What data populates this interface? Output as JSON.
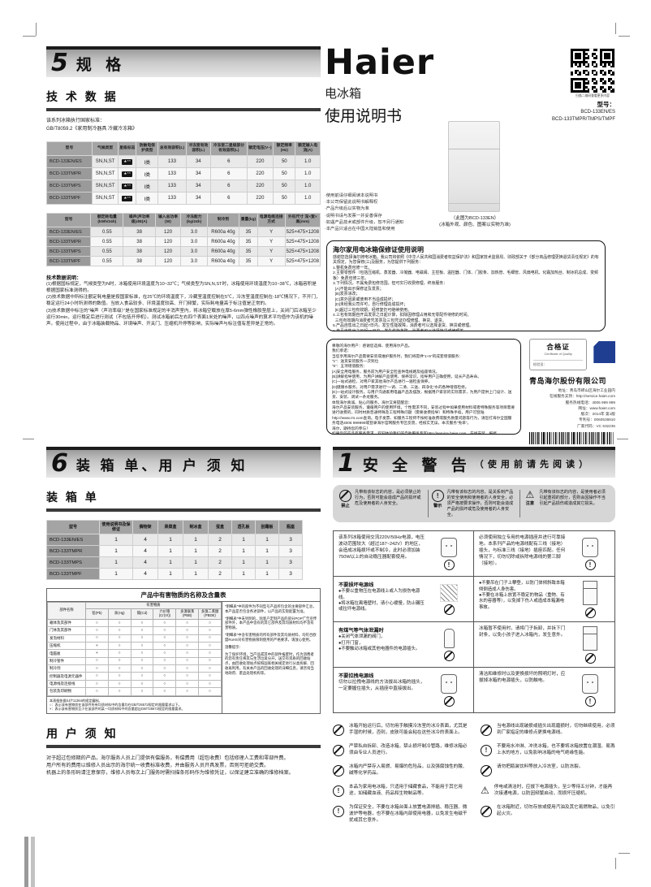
{
  "cover": {
    "brand": "Haier",
    "product": "电冰箱",
    "doc_title": "使用说明书",
    "qr_caption": "扫描二维码查看更多内容",
    "model_label": "型号：",
    "models": [
      "BCD-133EN/ES",
      "BCD-133TMPR/TMPS/TMPF"
    ],
    "notes": [
      "·使用前请仔细阅读本说明书",
      "·本公司保留此说明书解释权",
      "·产品升级后以实物为准",
      "·说明书请与发票一并妥善保存",
      "·如遇产品技术或部件升级，恕不另行通知",
      "·本产品只适合在中国大陆销售和使用"
    ],
    "fridge_caption1": "（此图为BCD-133EN）",
    "fridge_caption2": "(冰箱外观、颜色、图案以实物为准)"
  },
  "warranty": {
    "title": "海尔家用电冰箱保修证使用说明",
    "lines": [
      "感谢您选择海尔牌电冰箱。我公司将依照《中华人民共和国消费者权益保护法》和国家技术监督局、财政部关于《部分商品修理更换退货责任规定》的有关规定，为您保修(三)及服务，为您提供下列服务：",
      "1.整机免费包修一年。",
      "2.主要零部件（包括压缩机、蒸发器、冷凝器、电磁阀、主控板、温控器、门体、门胶条、加热管、毛细管、风扇电机、化霜加热丝、制冰机总成、变频板）免费包修三年。",
      "3.下列情况，不属免费包修范围，但可实行收费修理，终身服务：",
      "  [A]不能出示保修证及发票；",
      "  [B]发票涂改；",
      "  [C]意外因素或使用不当造成损坏；",
      "  [D]未经我公司许可，自行修理造成损坏；",
      "  [E]超过三包有效期，经修复仍可继续使用。",
      "4.三包有效期自开具发票之日起计算，扣除因修理占用和无零配件待修的时间。",
      "  三包有效期内消费者凭发票及三包凭证办理修理、换货、退货。",
      "5.产品自售出之日起7日内，发生性能故障，消费者可以选择退货、换货或修理。",
      "6.产品自售出之日起15日内，发生性能故障，消费者可以选择换货或修理等。",
      "7.“性能故障”，是指产品不符合安全、卫生要求，存在危及人身、财产安全的不合理危险；或者不具备产品应当具备的使用性能；或者不符合明示的质量状况。"
    ]
  },
  "service": {
    "lines": [
      "尊敬的海尔用户：感谢您选择、使用海尔产品。",
      "我们承诺：",
      "当您享用海尔产品需要安装或维护服务时，我们将提供“1+5”的成套增值服务：",
      "“1”：送货安装服务一次到位",
      "“5”：五项增值服务：",
      "[A]安全用电服务，服务前为用户安全检查供电线路及插座情况。",
      "[B]讲解指导使用，为用户讲解产品使用、保养常识，指导用户正确使用，延长产品寿命。",
      "[C]一站式通检，对用户家其他海尔产品进行一遍检查保养。",
      "[D]健康水服务，对用户需求进行“一调、二清、三送、四净化”水的各种增值检修。",
      "[E]一站式设计服务，与用户沟通家用电器产品及摆放，根据用户家装的实际需求，为用户提供上门设计、送货、安装、调试一条龙服务。",
      "体现海尔真诚、贴心的服务，海尔又将提醒您：",
      "海尔产品安装服务，遵循用户的使用环境，个性需求不同，安装过程中如果使用材料或者特殊服务等项目需要进行收费的，同时材质普通特殊及工程特殊问题（需要收费指导）和特殊手续，用户可登陆http://www.rrs.com查询。电子发票、如服务工程师不按标准收费或服务质量问题等行为，请您打海尔全国服务电话4006 999999或登录海尔官网服务专区反馈，经核实无误，本次服务“免单”。",
      "海尔，期待您的参与！",
      "如果您的产品有服务需求，欢迎体验我们的自助服务专区http://service.haier.com，在线安装、报修。"
    ]
  },
  "certificate": {
    "title": "合格证",
    "subtitle": "Certificate of Quality",
    "inspector": "检验员：",
    "company": "青岛海尔股份有限公司",
    "lines": [
      "地址：青岛市崂山区海尔工业园内",
      "在线服务支持：http://service.haier.com",
      "服务热线电话：4006 999 999",
      "网址：www.haier.com",
      "版次：2014年 第1版",
      "专利号：0060536910",
      "厂家代码：VC 532236"
    ]
  },
  "section5": {
    "number": "5",
    "title": "规 格",
    "subsection": "技 术 数 据",
    "standard_note": [
      "该系列冰箱执行国家标准：",
      "GB/T8059.2《家用制冷器具 冷藏冷冻箱》"
    ],
    "table1": {
      "headers": [
        "型号",
        "气候类型",
        "星级标志",
        "防触电保护类型",
        "总有效容积(L)",
        "冷冻室有效容积(L)",
        "冷冻室二星级部分有效容积(L)",
        "额定电压(V~)",
        "额定频率(Hz)",
        "额定输入电流(A)"
      ],
      "rows": [
        [
          "BCD-133EN/ES",
          "SN,N,ST",
          "badge:★**",
          "I类",
          "133",
          "34",
          "6",
          "220",
          "50",
          "1.0"
        ],
        [
          "BCD-133TMPR",
          "SN,N,ST",
          "badge:★**",
          "I类",
          "133",
          "34",
          "6",
          "220",
          "50",
          "1.0"
        ],
        [
          "BCD-133TMPS",
          "SN,N,ST",
          "badge:★**",
          "I类",
          "133",
          "34",
          "6",
          "220",
          "50",
          "1.0"
        ],
        [
          "BCD-133TMPF",
          "SN,N,ST",
          "badge:★**",
          "I类",
          "133",
          "34",
          "6",
          "220",
          "50",
          "1.0"
        ]
      ]
    },
    "table2": {
      "headers": [
        "型号",
        "额定耗电量(kWh/24h)",
        "噪声(声功率级)dB(A)",
        "输入总功率(W)",
        "冷冻能力(kg/24h)",
        "制冷剂",
        "重量(kg)",
        "电源电缆连接方式",
        "外形尺寸 深×宽×高(mm)"
      ],
      "rows": [
        [
          "BCD-133EN/ES",
          "0.55",
          "38",
          "120",
          "3.0",
          "R600a 40g",
          "35",
          "Y",
          "525×475×1208"
        ],
        [
          "BCD-133TMPR",
          "0.55",
          "38",
          "120",
          "3.0",
          "R600a 40g",
          "35",
          "Y",
          "525×475×1208"
        ],
        [
          "BCD-133TMPS",
          "0.55",
          "38",
          "120",
          "3.0",
          "R600a 40g",
          "35",
          "Y",
          "525×475×1208"
        ],
        [
          "BCD-133TMPF",
          "0.55",
          "38",
          "120",
          "3.0",
          "R600a 40g",
          "35",
          "Y",
          "525×475×1208"
        ]
      ]
    },
    "notes_title": "技术数据说明：",
    "notes": [
      "(1)根据国标规定，气候类型为N时，冰箱使用环境温度为10~32℃；气候类型为SN,N,ST时，冰箱使用环境温度为10~38℃，冰箱容积是根据国家标准测得的。",
      "(2)技术数据中所标注额定耗电量是按国家标准，在25℃的环境温度下，冷藏室温度控制在5℃，冷冻室温度控制在-18℃情况下，不开门，稳定运行24小时所测得的数值。当放入食品较多、环境温度较高、开门频繁，实际耗电量高于标注值是正常的。",
      "(3)技术数据中标注的“噪声（声功率级）”是在国家标准规定的半消声室内，将冰箱空载放在厚5-6mm弹性橡胶垫层上，关闭门后冰箱至少运行30min，运行稳定后进行测试（不包括开停机）。测试冰箱前后左右四个表面1米处的噪声，以四点噪声的算术平均值作为该机的噪声。使用过程中，由于冰箱装载物品、环境噪声、开关门、压缩机开停等影响，实际噪声与标注值有差异是正常的。"
    ]
  },
  "section6": {
    "number": "6",
    "title": "装 箱 单、用 户 须 知",
    "packing_title": "装 箱 单",
    "packing_table": {
      "headers": [
        "型号",
        "使用说明书及保修证",
        "搁物架",
        "果菜盒",
        "制冰盒",
        "蛋盒",
        "透孔板",
        "刮霜板",
        "瓶座"
      ],
      "rows": [
        [
          "BCD-133EN/ES",
          "1",
          "4",
          "1",
          "1",
          "2",
          "1",
          "1",
          "3"
        ],
        [
          "BCD-133TMPR",
          "1",
          "4",
          "1",
          "1",
          "2",
          "1",
          "1",
          "3"
        ],
        [
          "BCD-133TMPS",
          "1",
          "4",
          "1",
          "1",
          "2",
          "1",
          "1",
          "3"
        ],
        [
          "BCD-133TMPF",
          "1",
          "4",
          "1",
          "1",
          "2",
          "1",
          "1",
          "3"
        ]
      ]
    },
    "hazard": {
      "title": "产品中有害物质的名称及含量表",
      "part_header": "部件名称",
      "group_header": "有害物质",
      "substances": [
        "铅(Pb)",
        "汞(Hg)",
        "镉(Cd)",
        "六价铬(Cr(VI))",
        "多溴联苯(PBB)",
        "多溴二苯醚(PBDE)"
      ],
      "rows": [
        [
          "箱体及其部件",
          "○",
          "○",
          "○",
          "○",
          "○",
          "○"
        ],
        [
          "门体及其部件",
          "○",
          "○",
          "○",
          "○",
          "○",
          "○"
        ],
        [
          "发泡材料",
          "○",
          "○",
          "○",
          "○",
          "○",
          "○"
        ],
        [
          "压缩机",
          "×",
          "○",
          "○",
          "○",
          "○",
          "○"
        ],
        [
          "电脑板",
          "×",
          "○",
          "○",
          "○",
          "○",
          "○"
        ],
        [
          "制冷管件",
          "○",
          "○",
          "○",
          "○",
          "○",
          "○"
        ],
        [
          "制冷剂",
          "○",
          "○",
          "○",
          "○",
          "○",
          "○"
        ],
        [
          "控制器及电源元器件",
          "○",
          "○",
          "○",
          "○",
          "○",
          "○"
        ],
        [
          "电源线及连接线",
          "○",
          "○",
          "○",
          "○",
          "○",
          "○"
        ],
        [
          "包装及印刷物",
          "○",
          "○",
          "○",
          "○",
          "○",
          "○"
        ]
      ],
      "footnotes": [
        "本表格依据SJ/T11364的规定编制。",
        "○：表示该有害物质在该部件所有均质材料中的含量均在GB/T26572规定的限量要求以下。",
        "×：表示该有害物质至少在该部件的某一均质材料中的含量超出GB/T26572规定的限量要求。"
      ],
      "side_notes": [
        "“明细表”中的部件为不同型号产品所包含的主要部件汇总，本产品是否包含各述部件，以产品的实际配置为准。",
        "“明细表”中未列明的，除客户定制产品的部分POP广告宣传部件外，本产品中含有的其它部件及其均质材料均不含有害物质。",
        "“明细表”中含有害物质的所有部件及其均质材料，均符合欧盟RoHS对有害物质限制使用的严格要求，请放心使用。",
        "温馨提示：",
        "为了保护环境，当产品或其中的部件报废时，作为消费者的您有责任将其与生活垃圾分开，送交有资质的回收站点，由回收处理站点按照国家相关规定进行分类拆解、回收再利用。有关本产品的回收处理的详细信息，请咨询当地政府、废品处理机构等。"
      ]
    },
    "user_notice_title": "用 户 须 知",
    "user_notice": [
      "对于超过包修期的产品，海尔服务人员上门提供有偿服务，有偿费用（超包收费）包括修理人工费和零部件费。",
      "用户所有的费用以维修人员出示的海尔统一收费标准收费，并由服务人员开具发票，否则可拒绝交费。",
      "机器上的条形码请注意保存，维修人员每次上门服务时需扫描条形码作为维修凭证，以保证建立准确的维修档案。"
    ]
  },
  "section1": {
    "number": "1",
    "title": "安 全 警 告",
    "subtitle": "（ 使 用 前 请 先 阅 读 ）",
    "legend": [
      {
        "icon": "prohibit",
        "label": "禁止",
        "text": "凡带有该标志的内容，是必须禁止的行为，否则可能会造成产品的损坏或危及使用者的人身安全。"
      },
      {
        "icon": "warn",
        "label": "警示",
        "text": "凡带有该标志的内容，是关系到产品的安全使用和使用者的人身安全，必须严格按要求操作，否则可能会造成产品的损坏或危及使用者的人身安全。"
      },
      {
        "icon": "caution",
        "label": "注意",
        "text": "凡带有该标志的内容，是使用者必须引起重视的部分，否则会因操作不当引起产品损伤或造成其它损失。"
      }
    ],
    "grid": [
      {
        "icon": "warn",
        "art": "power-plug",
        "title": "",
        "text": "该系列冰箱使用交流220V/50Hz电源，电压波动范围较大（超过187~242V）的地区，会造成冰箱损坏或不制冷，此时必须加装750W以上的自动稳压器配套使用。",
        "bullets": []
      },
      {
        "icon": "warn",
        "art": "grounded-socket",
        "title": "",
        "text": "必须使用独立专用的电源插座并进行可靠接地。本系列产品的电源线配有三线（接地）插头，与标准三线（接地）插座匹配。任何情况下，切勿切除或拆除电源线的第三脚（接地）。",
        "bullets": []
      },
      {
        "icon": "prohibit",
        "art": "damaged-cord",
        "title": "不要损坏电源线",
        "text": "",
        "bullets": [
          "●不要以重物压在电源线上或人为损伤电源线。",
          "●将冰箱拉离墙壁时，请小心缓慢，防止碾压或拉坏电源线。"
        ]
      },
      {
        "icon": "prohibit",
        "art": "climbing-fridge",
        "title": "",
        "text": "",
        "bullets": [
          "●不要吊在门子上攀登，以防门体倾斜致本箱倾倒造成人身伤害。",
          "●不要在冰箱上放置不稳定的物品（重物、有水的容器等），以免掉下伤人或造成本箱漏电事故。"
        ]
      },
      {
        "icon": "prohibit",
        "art": "gas-cylinder",
        "title": "有煤气等气体泄漏时",
        "text": "",
        "bullets": [
          "●关闭气体泄漏的阀门，",
          "●打开门窗，",
          "●不要触动冰箱或其他电器件的电源插头。"
        ]
      },
      {
        "icon": "prohibit",
        "art": "fridge-door",
        "title": "",
        "text": "冰箱暂不使用时，请将门子拆卸，并拆下门封条，以免小孩子进入冰箱内，发生意外。",
        "bullets": []
      },
      {
        "icon": "prohibit",
        "art": "pull-plug",
        "title": "不要拉拽电源线",
        "text": "切勿以拉拽电源线的方法拔出冰箱的插头，一定要握住插头，从插座中直接拔出。",
        "bullets": []
      },
      {
        "icon": "warn",
        "art": "pull-plug",
        "title": "",
        "text": "清洁和维修时以及更换损坏的照明灯时，应拔掉冰箱的电源插头，以防触电。",
        "bullets": []
      }
    ],
    "list": [
      {
        "icon": "prohibit",
        "text": "冰箱开始运行后，切勿用手触摸冷冻室的冰冷表面，尤其是手湿的时候，否则，皮肤可能会粘在这些冰冷的表面上。"
      },
      {
        "icon": "prohibit",
        "text": "当电源线出现破损或插头出现磨损时，切勿继续使用，必须到厂家指定的维修点更换电源线。"
      },
      {
        "icon": "prohibit",
        "text": "严禁私自拆卸、改造冰箱，禁止损坏制冷管路，维修冰箱必须由专业人员进行。"
      },
      {
        "icon": "warn",
        "text": "不要用水冲淋、冲洗冰箱，也不要将冰箱放置在潮湿、易溅上水的地方，以免影响冰箱的电气绝缘性能。"
      },
      {
        "icon": "prohibit",
        "text": "冰箱内严禁存入易燃、易爆的危险品，以及强腐蚀性的酸、碱等化学药品。"
      },
      {
        "icon": "prohibit",
        "text": "请勿把瓶装饮料等放入冷冻室，以防冻裂。"
      },
      {
        "icon": "warn",
        "text": "本品为家用电冰箱，只适用于储藏食品，不能用于其它用途，如储藏血液、药品和生物制品等。"
      },
      {
        "icon": "caution",
        "text": "停电或清洁时，应拔下电源插头，至少等待五分钟，才能再次接通电源，以防因频繁启动，而损坏压缩机。"
      },
      {
        "icon": "warn",
        "text": "为保证安全，不要在冰箱台面上放置电源排插、稳压器、微波炉等电器，也不要在冰箱内部使用电器，以免发生电磁干扰或其它意外。"
      },
      {
        "icon": "prohibit",
        "text": "在冰箱附近，切勿存放或使用汽油及其它易燃物品，以免引起火灾。"
      }
    ]
  }
}
